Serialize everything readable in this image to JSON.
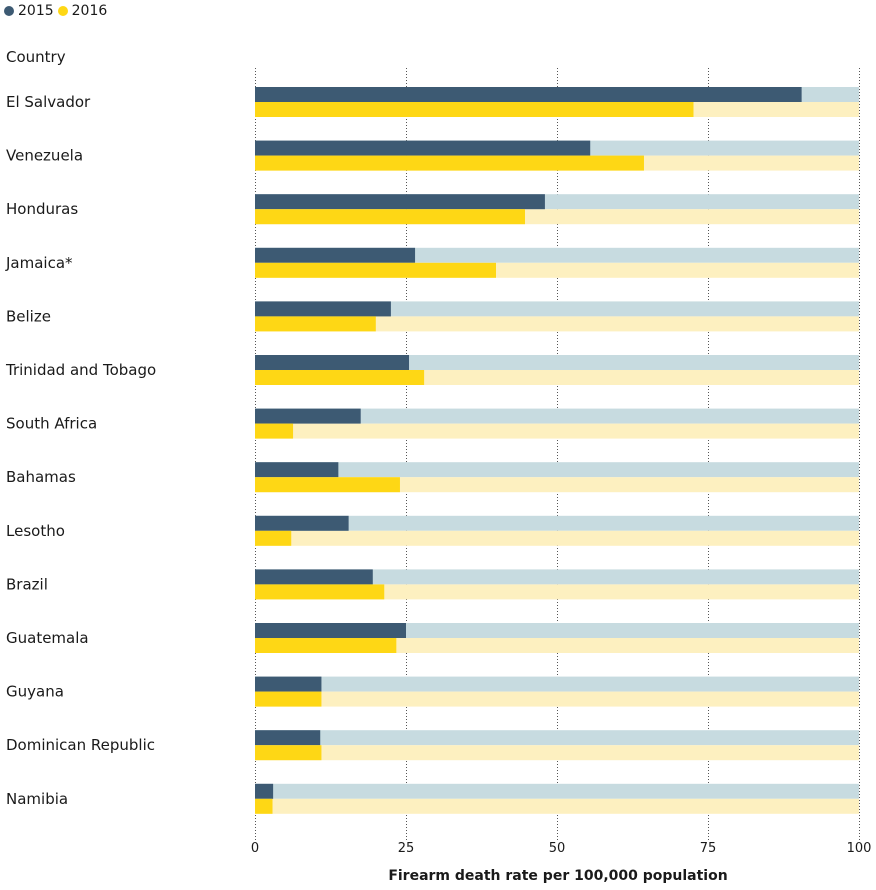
{
  "legend": {
    "items": [
      {
        "label": "2015",
        "color": "#3d5a73"
      },
      {
        "label": "2016",
        "color": "#fed715"
      }
    ]
  },
  "column_header": "Country",
  "colors": {
    "series_2015": "#3d5a73",
    "series_2016": "#fed715",
    "track_2015": "#c7dbe0",
    "track_2016": "#fdf0c0",
    "grid": "#555555"
  },
  "chart_data": {
    "type": "bar",
    "orientation": "horizontal",
    "title": "",
    "xlabel": "Firearm death rate per 100,000 population",
    "ylabel": "Country",
    "xlim": [
      0,
      100
    ],
    "xticks": [
      0,
      25,
      50,
      75,
      100
    ],
    "grid": true,
    "legend_position": "top-left",
    "categories": [
      "El Salvador",
      "Venezuela",
      "Honduras",
      "Jamaica*",
      "Belize",
      "Trinidad and Tobago",
      "South Africa",
      "Bahamas",
      "Lesotho",
      "Brazil",
      "Guatemala",
      "Guyana",
      "Dominican Republic",
      "Namibia"
    ],
    "series": [
      {
        "name": "2015",
        "values": [
          90.5,
          55.5,
          48,
          26.5,
          22.5,
          25.5,
          17.5,
          13.8,
          15.5,
          19.5,
          25,
          11,
          10.8,
          3
        ]
      },
      {
        "name": "2016",
        "values": [
          72.6,
          64.4,
          44.7,
          39.9,
          20,
          28,
          6.3,
          24,
          6,
          21.4,
          23.4,
          11,
          11,
          2.9
        ]
      }
    ]
  }
}
